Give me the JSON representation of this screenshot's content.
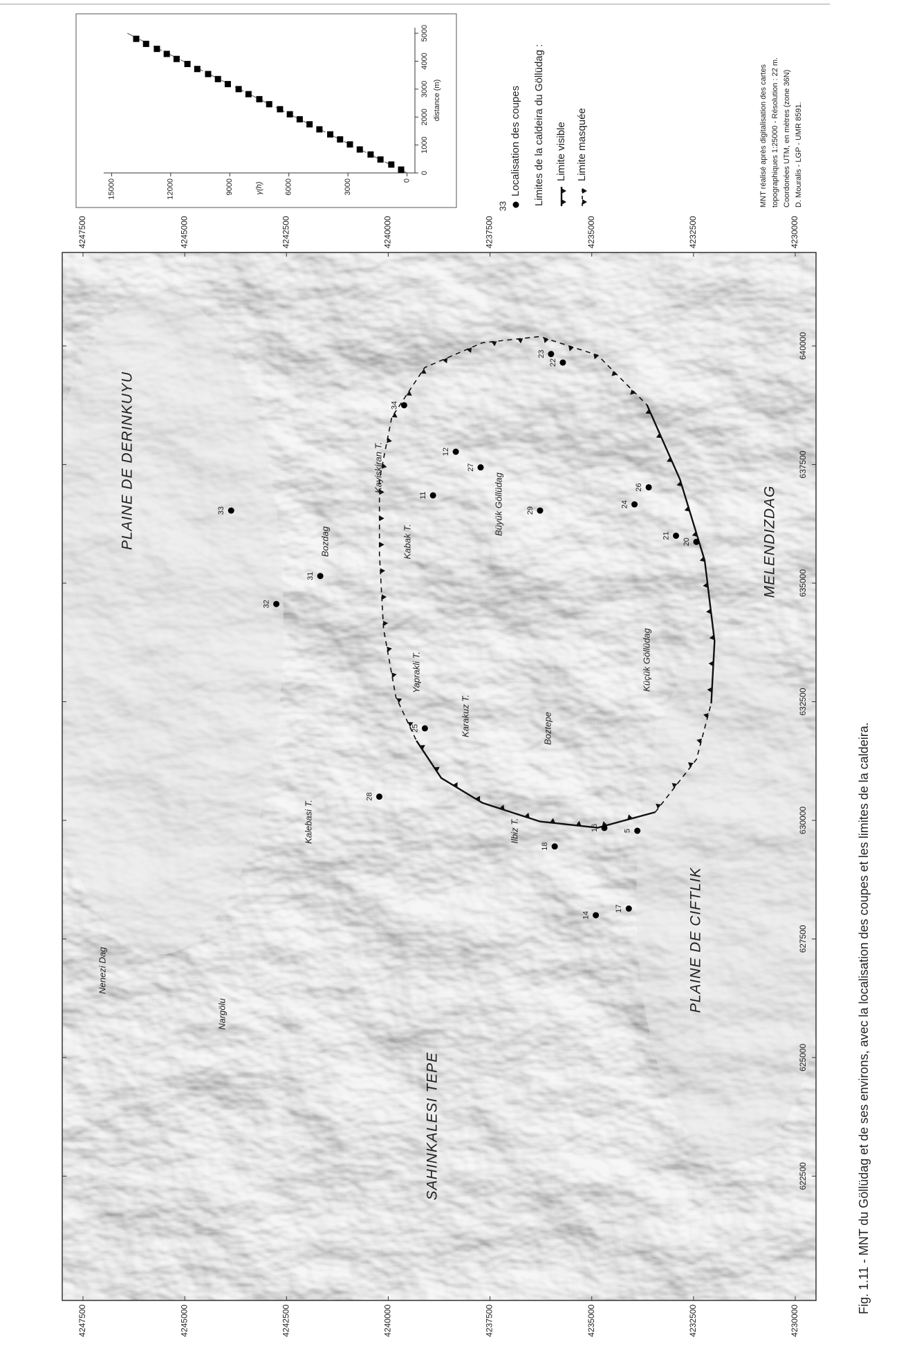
{
  "map": {
    "type": "map",
    "xlim": [
      619880,
      641970
    ],
    "ylim": [
      4229490,
      4248010
    ],
    "xticks": [
      622500,
      625000,
      627500,
      630000,
      632500,
      635000,
      637500,
      640000
    ],
    "yticks": [
      4230000,
      4232500,
      4235000,
      4237500,
      4240000,
      4242500,
      4245000,
      4247500
    ],
    "places": [
      "PLAINE DE DERINKUYU",
      "Nenezi Dag",
      "Nargölu",
      "Kalebasi T.",
      "Bozdag",
      "Kayiskiran T.",
      "Kabak T.",
      "Yaprakli T.",
      "Büyük Göllüdag",
      "Karakuz T.",
      "Ilbiz T.",
      "Boztepe",
      "Küçük Göllüdag",
      "SAHINKALESI TEPE",
      "PLAINE DE CIFTLIK",
      "MELENDIZDAG"
    ],
    "points": [
      {
        "label": "33",
        "x": 636530,
        "y": 4243860
      },
      {
        "label": "32",
        "x": 634560,
        "y": 4242750
      },
      {
        "label": "31",
        "x": 635150,
        "y": 4241670
      },
      {
        "label": "34",
        "x": 638750,
        "y": 4239610
      },
      {
        "label": "12",
        "x": 637770,
        "y": 4238340
      },
      {
        "label": "11",
        "x": 636850,
        "y": 4238900
      },
      {
        "label": "27",
        "x": 637440,
        "y": 4237730
      },
      {
        "label": "29",
        "x": 636530,
        "y": 4236270
      },
      {
        "label": "24",
        "x": 636660,
        "y": 4233950
      },
      {
        "label": "26",
        "x": 637020,
        "y": 4233600
      },
      {
        "label": "21",
        "x": 636000,
        "y": 4232930
      },
      {
        "label": "20",
        "x": 635870,
        "y": 4232430
      },
      {
        "label": "23",
        "x": 639830,
        "y": 4236000
      },
      {
        "label": "22",
        "x": 639650,
        "y": 4235710
      },
      {
        "label": "25",
        "x": 631940,
        "y": 4239100
      },
      {
        "label": "28",
        "x": 630500,
        "y": 4240220
      },
      {
        "label": "18",
        "x": 629450,
        "y": 4235910
      },
      {
        "label": "16",
        "x": 629840,
        "y": 4234690
      },
      {
        "label": "5",
        "x": 629780,
        "y": 4233880
      },
      {
        "label": "14",
        "x": 628000,
        "y": 4234900
      },
      {
        "label": "17",
        "x": 628140,
        "y": 4234090
      }
    ]
  },
  "inset": {
    "type": "scatter",
    "xlabel": "distance (m)",
    "ylabel": "γ(h)",
    "xlim": [
      0,
      5200
    ],
    "ylim": [
      -400,
      15400
    ],
    "xticks": [
      0,
      1000,
      2000,
      3000,
      4000,
      5000
    ],
    "yticks": [
      0,
      3000,
      6000,
      9000,
      12000,
      15000
    ],
    "x": [
      120,
      300,
      480,
      660,
      840,
      1020,
      1200,
      1380,
      1560,
      1740,
      1920,
      2100,
      2280,
      2460,
      2640,
      2820,
      3000,
      3180,
      3360,
      3540,
      3720,
      3900,
      4080,
      4260,
      4440,
      4620,
      4800
    ],
    "values": [
      300,
      800,
      1350,
      1850,
      2400,
      2900,
      3400,
      3900,
      4450,
      4950,
      5450,
      5950,
      6450,
      7000,
      7500,
      8050,
      8550,
      9100,
      9600,
      10100,
      10650,
      11150,
      11700,
      12200,
      12700,
      13250,
      13750
    ],
    "model": {
      "x": [
        0,
        5000
      ],
      "values": [
        0,
        14200
      ]
    }
  },
  "legend": {
    "sample_number": "33",
    "samples": "Localisation des coupes",
    "caldera_title": "Limites de la caldeira du Göllüdag :",
    "visible": "Limite visible",
    "masked": "Limite masquée"
  },
  "credits": [
    "MNT réalisé après digitalisation des cartes",
    "topographiques 1:25000 - Résolution : 22 m.",
    "Coordonées UTM, en mètres (zone 36N)",
    "D. Mouralis - LGP - UMR 8591."
  ],
  "caption": "Fig. 1.11 - MNT du Göllüdag et de ses environs, avec la localisation des coupes et les limites de la caldeira."
}
